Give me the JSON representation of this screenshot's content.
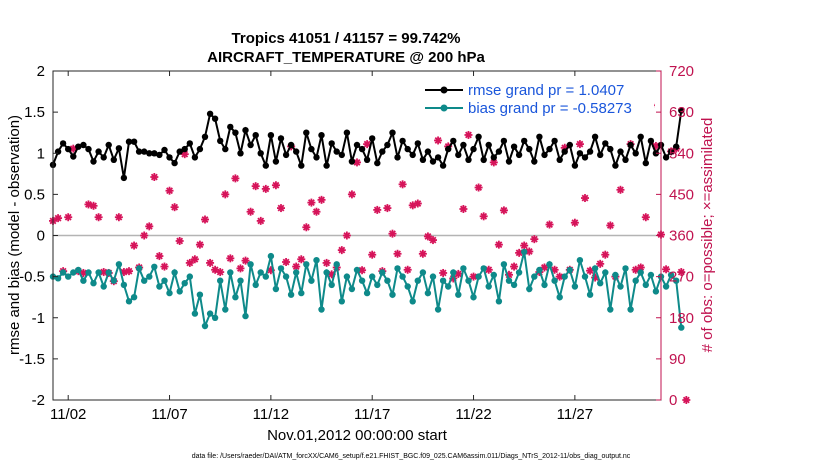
{
  "chart_data": {
    "type": "line",
    "title_line1": "Tropics 41051 / 41157 = 99.742%",
    "title_line2": "AIRCRAFT_TEMPERATURE @ 200 hPa",
    "xlabel": "Nov.01,2012 00:00:00 start",
    "ylabel_left": "rmse and bias (model - observation)",
    "ylabel_right": "# of obs: o=possible; ×=assimilated",
    "footer": "data file: /Users/raeder/DAI/ATM_forcXX/CAM6_setup/f.e21.FHIST_BGC.f09_025.CAM6assim.011/Diags_NTrS_2012-11/obs_diag_output.nc",
    "x_tick_labels": [
      "11/02",
      "11/07",
      "11/12",
      "11/17",
      "11/22",
      "11/27"
    ],
    "x_tick_days": [
      2,
      7,
      12,
      17,
      22,
      27
    ],
    "xlim_days": [
      1.25,
      31.25
    ],
    "ylim_left": [
      -2,
      2
    ],
    "y_tick_labels_left": [
      "2",
      "1.5",
      "1",
      "0.5",
      "0",
      "-0.5",
      "-1",
      "-1.5",
      "-2"
    ],
    "y_ticks_left": [
      2,
      1.5,
      1,
      0.5,
      0,
      -0.5,
      -1,
      -1.5,
      -2
    ],
    "ylim_right": [
      0,
      720
    ],
    "y_tick_labels_right": [
      "720",
      "630",
      "540",
      "450",
      "360",
      "270",
      "180",
      "90",
      "0"
    ],
    "y_ticks_right": [
      720,
      630,
      540,
      450,
      360,
      270,
      180,
      90,
      0
    ],
    "colors": {
      "rmse": "#000000",
      "bias": "#0e8a8a",
      "obs": "#d6145a",
      "zero_line": "#b4b4b4",
      "right_axis": "#c0124f",
      "legend_text": "#1a56db"
    },
    "legend": [
      {
        "label": "rmse grand pr = 1.0407",
        "series": "rmse"
      },
      {
        "label": "bias grand pr = -0.58273",
        "series": "bias"
      }
    ],
    "series": [
      {
        "name": "rmse",
        "axis": "left",
        "x_start_day": 1.25,
        "x_step_day": 0.25,
        "values": [
          0.86,
          1.02,
          1.12,
          1.05,
          0.96,
          1.08,
          1.1,
          1.05,
          0.9,
          1.02,
          0.95,
          1.1,
          0.92,
          1.06,
          0.7,
          1.14,
          1.14,
          1.02,
          1.02,
          1.0,
          1.0,
          0.98,
          1.04,
          0.95,
          0.88,
          1.02,
          1.05,
          1.12,
          0.95,
          1.05,
          1.2,
          1.48,
          1.42,
          1.15,
          1.05,
          1.32,
          1.25,
          1.0,
          1.28,
          1.1,
          1.22,
          1.0,
          0.85,
          1.22,
          0.9,
          1.18,
          0.98,
          1.1,
          1.02,
          0.85,
          1.25,
          1.05,
          0.95,
          1.22,
          0.85,
          1.12,
          1.02,
          0.98,
          1.25,
          0.9,
          1.1,
          1.05,
          0.92,
          1.18,
          0.88,
          1.02,
          1.1,
          1.25,
          0.95,
          1.15,
          1.05,
          0.98,
          1.12,
          0.92,
          1.02,
          0.9,
          0.95,
          0.85,
          1.05,
          1.15,
          0.98,
          1.1,
          0.92,
          1.05,
          1.2,
          0.92,
          1.1,
          0.95,
          1.02,
          1.15,
          0.9,
          1.08,
          0.98,
          1.15,
          1.05,
          0.9,
          1.2,
          0.98,
          1.05,
          1.15,
          0.92,
          1.02,
          1.1,
          0.85,
          1.0,
          0.95,
          1.02,
          1.2,
          0.98,
          1.12,
          1.05,
          0.85,
          1.02,
          0.92,
          1.1,
          1.0,
          1.2,
          0.88,
          1.15,
          1.0,
          1.1,
          0.95,
          1.02,
          1.08,
          1.52
        ]
      },
      {
        "name": "bias",
        "axis": "left",
        "x_start_day": 1.25,
        "x_step_day": 0.25,
        "values": [
          -0.5,
          -0.52,
          -0.45,
          -0.5,
          -0.45,
          -0.42,
          -0.55,
          -0.45,
          -0.58,
          -0.45,
          -0.62,
          -0.45,
          -0.55,
          -0.35,
          -0.6,
          -0.8,
          -0.75,
          -0.4,
          -0.55,
          -0.5,
          -0.38,
          -0.62,
          -0.55,
          -0.7,
          -0.45,
          -0.68,
          -0.58,
          -0.5,
          -0.95,
          -0.72,
          -1.1,
          -0.95,
          -1.0,
          -0.55,
          -0.9,
          -0.45,
          -0.75,
          -0.55,
          -0.98,
          -0.35,
          -0.6,
          -0.45,
          -0.5,
          -0.25,
          -0.65,
          -0.4,
          -0.5,
          -0.72,
          -0.45,
          -0.7,
          -0.35,
          -0.55,
          -0.3,
          -0.9,
          -0.45,
          -0.6,
          -0.35,
          -0.8,
          -0.5,
          -0.65,
          -0.42,
          -0.55,
          -0.7,
          -0.5,
          -0.6,
          -0.45,
          -0.55,
          -0.72,
          -0.4,
          -0.5,
          -0.62,
          -0.8,
          -0.55,
          -0.45,
          -0.7,
          -0.5,
          -0.9,
          -0.55,
          -0.62,
          -0.45,
          -0.72,
          -0.4,
          -0.55,
          -0.75,
          -0.5,
          -0.4,
          -0.62,
          -0.48,
          -0.8,
          -0.35,
          -0.55,
          -0.6,
          -0.45,
          -0.2,
          -0.65,
          -0.5,
          -0.42,
          -0.6,
          -0.35,
          -0.55,
          -0.75,
          -0.5,
          -0.42,
          -0.62,
          -0.3,
          -0.5,
          -0.72,
          -0.4,
          -0.58,
          -0.45,
          -0.9,
          -0.48,
          -0.62,
          -0.4,
          -0.9,
          -0.55,
          -0.45,
          -0.6,
          -0.48,
          -0.68,
          -0.5,
          -0.62,
          -0.48,
          -0.55,
          -1.12
        ]
      },
      {
        "name": "obs",
        "axis": "right",
        "marker": "asterisk",
        "x_start_day": 1.25,
        "x_step_day": 0.25,
        "values": [
          392,
          398,
          282,
          400,
          550,
          282,
          278,
          428,
          425,
          400,
          280,
          278,
          260,
          400,
          280,
          282,
          338,
          290,
          360,
          380,
          488,
          315,
          292,
          458,
          422,
          348,
          538,
          300,
          308,
          340,
          395,
          300,
          285,
          280,
          450,
          310,
          485,
          288,
          305,
          412,
          468,
          392,
          462,
          284,
          470,
          420,
          302,
          555,
          292,
          308,
          378,
          432,
          412,
          438,
          300,
          275,
          290,
          328,
          360,
          450,
          520,
          284,
          560,
          318,
          416,
          282,
          420,
          364,
          320,
          472,
          285,
          426,
          430,
          320,
          358,
          350,
          568,
          278,
          555,
          266,
          276,
          418,
          580,
          270,
          465,
          402,
          285,
          520,
          340,
          415,
          274,
          292,
          322,
          338,
          325,
          352,
          280,
          290,
          384,
          285,
          270,
          552,
          285,
          388,
          560,
          442,
          283,
          268,
          298,
          318,
          382,
          270,
          460,
          632,
          560,
          285,
          290,
          400,
          645,
          556,
          362,
          286,
          544,
          550,
          280,
          0
        ]
      }
    ]
  }
}
